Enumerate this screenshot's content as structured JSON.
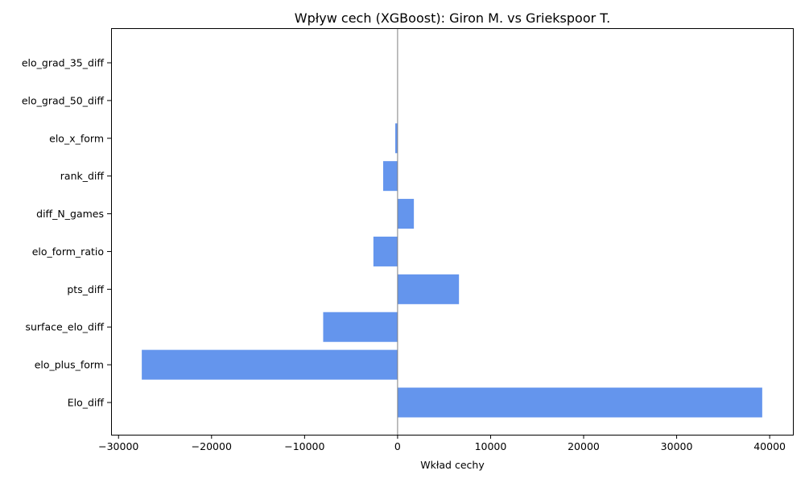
{
  "chart_data": {
    "type": "bar",
    "orientation": "horizontal",
    "title": "Wpływ cech (XGBoost): Giron M. vs Griekspoor T.",
    "xlabel": "Wkład cechy",
    "ylabel": "",
    "categories": [
      "Elo_diff",
      "elo_plus_form",
      "surface_elo_diff",
      "pts_diff",
      "elo_form_ratio",
      "diff_N_games",
      "rank_diff",
      "elo_x_form",
      "elo_grad_50_diff",
      "elo_grad_35_diff"
    ],
    "values": [
      39200,
      -27500,
      -8000,
      6600,
      -2600,
      1750,
      -1550,
      -250,
      0,
      0
    ],
    "xlim": [
      -30800,
      42500
    ],
    "xticks": [
      -30000,
      -20000,
      -10000,
      0,
      10000,
      20000,
      30000,
      40000
    ],
    "xtick_labels": [
      "−30000",
      "−20000",
      "−10000",
      "0",
      "10000",
      "20000",
      "30000",
      "40000"
    ],
    "grid": false,
    "bar_color": "#6495ED",
    "zero_line_color": "#808080"
  }
}
